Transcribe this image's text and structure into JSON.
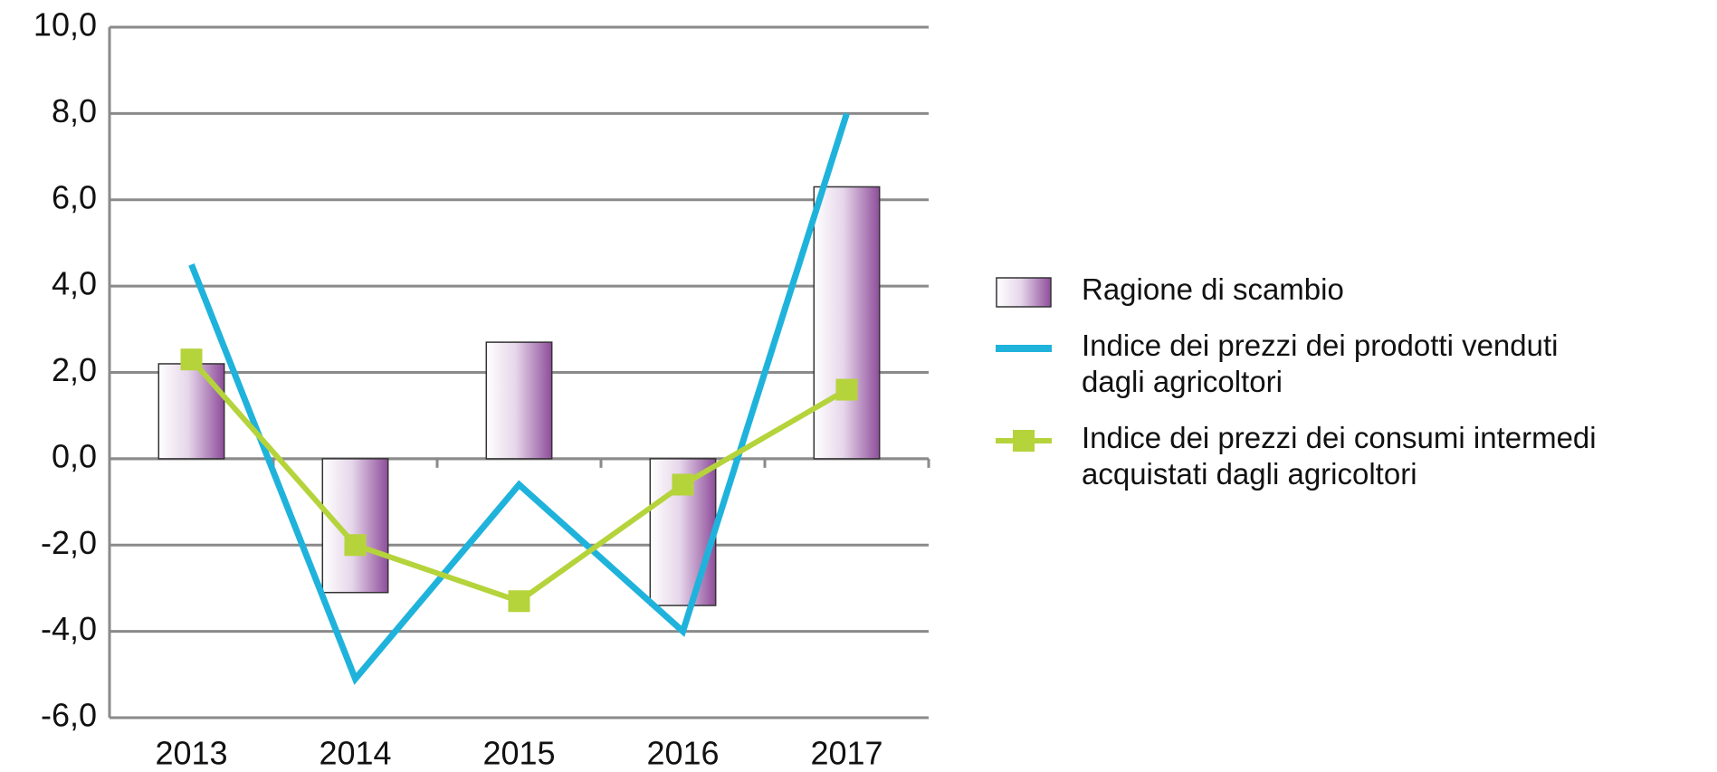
{
  "chart_data": {
    "type": "bar",
    "categories": [
      "2013",
      "2014",
      "2015",
      "2016",
      "2017"
    ],
    "series": [
      {
        "name": "Ragione di scambio",
        "type": "bar",
        "color": "#9b5fa6",
        "values": [
          2.2,
          -3.1,
          2.7,
          -3.4,
          6.3
        ]
      },
      {
        "name": "Indice dei prezzi dei prodotti venduti dagli agricoltori",
        "type": "line",
        "color": "#1fb3dc",
        "values": [
          4.5,
          -5.1,
          -0.6,
          -4.0,
          8.0
        ]
      },
      {
        "name": "Indice dei prezzi dei consumi intermedi acquistati dagli agricoltori",
        "type": "line-marker",
        "color": "#b5d33b",
        "values": [
          2.3,
          -2.0,
          -3.3,
          -0.6,
          1.6
        ]
      }
    ],
    "ylim": [
      -6,
      10
    ],
    "yticks": [
      {
        "value": -6,
        "label": "-6,0"
      },
      {
        "value": -4,
        "label": "-4,0"
      },
      {
        "value": -2,
        "label": "-2,0"
      },
      {
        "value": 0,
        "label": "0,0"
      },
      {
        "value": 2,
        "label": "2,0"
      },
      {
        "value": 4,
        "label": "4,0"
      },
      {
        "value": 6,
        "label": "6,0"
      },
      {
        "value": 8,
        "label": "8,0"
      },
      {
        "value": 10,
        "label": "10,0"
      }
    ],
    "grid": true,
    "legend": "right"
  }
}
